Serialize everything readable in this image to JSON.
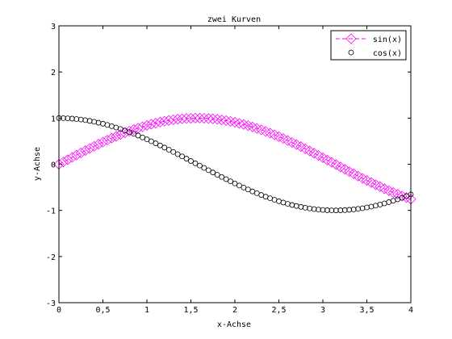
{
  "chart_data": {
    "type": "scatter",
    "title": "zwei Kurven",
    "xlabel": "x-Achse",
    "ylabel": "y-Achse",
    "xlim": [
      0,
      4
    ],
    "ylim": [
      -3,
      3
    ],
    "xticks": [
      0,
      0.5,
      1,
      1.5,
      2,
      2.5,
      3,
      3.5,
      4
    ],
    "xtick_labels": [
      "0",
      "0,5",
      "1",
      "1,5",
      "2",
      "2,5",
      "3",
      "3,5",
      "4"
    ],
    "yticks": [
      -3,
      -2,
      -1,
      0,
      1,
      2,
      3
    ],
    "ytick_labels": [
      "-3",
      "-2",
      "-1",
      "0",
      "1",
      "2",
      "3"
    ],
    "grid": false,
    "legend_position": "top-right",
    "x": [
      0,
      0.05,
      0.1,
      0.15,
      0.2,
      0.25,
      0.3,
      0.35,
      0.4,
      0.45,
      0.5,
      0.55,
      0.6,
      0.65,
      0.7,
      0.75,
      0.8,
      0.85,
      0.9,
      0.95,
      1,
      1.05,
      1.1,
      1.15,
      1.2,
      1.25,
      1.3,
      1.35,
      1.4,
      1.45,
      1.5,
      1.55,
      1.6,
      1.65,
      1.7,
      1.75,
      1.8,
      1.85,
      1.9,
      1.95,
      2,
      2.05,
      2.1,
      2.15,
      2.2,
      2.25,
      2.3,
      2.35,
      2.4,
      2.45,
      2.5,
      2.55,
      2.6,
      2.65,
      2.7,
      2.75,
      2.8,
      2.85,
      2.9,
      2.95,
      3,
      3.05,
      3.1,
      3.15,
      3.2,
      3.25,
      3.3,
      3.35,
      3.4,
      3.45,
      3.5,
      3.55,
      3.6,
      3.65,
      3.7,
      3.75,
      3.8,
      3.85,
      3.9,
      3.95,
      4
    ],
    "series": [
      {
        "name": "sin(x)",
        "color": "#ff00ff",
        "marker": "diamond",
        "line": "dashed",
        "values": [
          0.0,
          0.05,
          0.1,
          0.149,
          0.199,
          0.247,
          0.296,
          0.343,
          0.389,
          0.435,
          0.479,
          0.523,
          0.565,
          0.605,
          0.644,
          0.682,
          0.717,
          0.751,
          0.783,
          0.813,
          0.841,
          0.867,
          0.891,
          0.913,
          0.932,
          0.949,
          0.964,
          0.976,
          0.985,
          0.993,
          0.997,
          1.0,
          1.0,
          0.997,
          0.992,
          0.984,
          0.974,
          0.961,
          0.946,
          0.929,
          0.909,
          0.887,
          0.863,
          0.837,
          0.808,
          0.778,
          0.746,
          0.711,
          0.675,
          0.638,
          0.598,
          0.558,
          0.516,
          0.472,
          0.427,
          0.382,
          0.335,
          0.287,
          0.239,
          0.19,
          0.141,
          0.091,
          0.042,
          -0.008,
          -0.058,
          -0.108,
          -0.158,
          -0.207,
          -0.256,
          -0.304,
          -0.351,
          -0.397,
          -0.443,
          -0.487,
          -0.53,
          -0.572,
          -0.612,
          -0.651,
          -0.688,
          -0.723,
          -0.757
        ]
      },
      {
        "name": "cos(x)",
        "color": "#000000",
        "marker": "circle",
        "line": "none",
        "values": [
          1.0,
          0.999,
          0.995,
          0.989,
          0.98,
          0.969,
          0.955,
          0.939,
          0.921,
          0.9,
          0.878,
          0.853,
          0.825,
          0.796,
          0.765,
          0.732,
          0.697,
          0.66,
          0.622,
          0.582,
          0.54,
          0.498,
          0.454,
          0.408,
          0.362,
          0.315,
          0.267,
          0.219,
          0.17,
          0.121,
          0.071,
          0.021,
          -0.029,
          -0.079,
          -0.129,
          -0.178,
          -0.227,
          -0.276,
          -0.323,
          -0.37,
          -0.416,
          -0.461,
          -0.505,
          -0.547,
          -0.589,
          -0.628,
          -0.666,
          -0.703,
          -0.737,
          -0.77,
          -0.801,
          -0.83,
          -0.857,
          -0.882,
          -0.904,
          -0.924,
          -0.942,
          -0.958,
          -0.971,
          -0.982,
          -0.99,
          -0.996,
          -0.999,
          -1.0,
          -0.998,
          -0.994,
          -0.987,
          -0.978,
          -0.967,
          -0.953,
          -0.936,
          -0.918,
          -0.897,
          -0.874,
          -0.848,
          -0.821,
          -0.791,
          -0.76,
          -0.726,
          -0.691,
          -0.654
        ]
      }
    ]
  }
}
